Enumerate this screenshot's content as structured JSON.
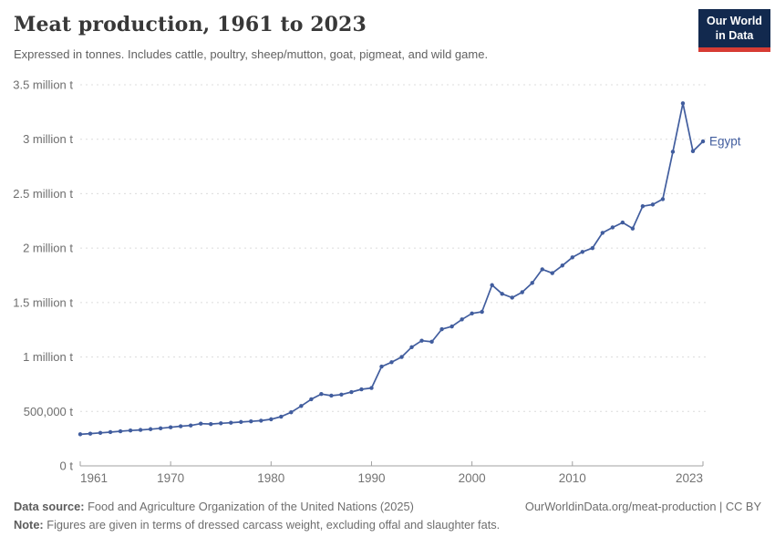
{
  "header": {
    "title": "Meat production, 1961 to 2023",
    "subtitle": "Expressed in tonnes. Includes cattle, poultry, sheep/mutton, goat, pigmeat, and wild game.",
    "logo_line1": "Our World",
    "logo_line2": "in Data"
  },
  "colors": {
    "series_blue": "#415d9e",
    "logo_bg": "#12294e",
    "logo_accent": "#d73c34",
    "gridline": "#dcdcdc",
    "axis": "#a1a1a1",
    "x_tick_label": "#737373",
    "y_tick_label": "#6e6e6e",
    "title_color": "#383838",
    "subtitle_color": "#616161"
  },
  "chart_data": {
    "type": "line",
    "title": "Meat production, 1961 to 2023",
    "unit": "tonnes",
    "grid": "horizontal-dashed",
    "legend_position": "end-of-line-label",
    "xlim": [
      1961,
      2023
    ],
    "ylim": [
      0,
      3500000
    ],
    "x_ticks": [
      1961,
      1970,
      1980,
      1990,
      2000,
      2010,
      2023
    ],
    "y_ticks": [
      {
        "value": 0,
        "label": "0 t"
      },
      {
        "value": 500000,
        "label": "500,000 t"
      },
      {
        "value": 1000000,
        "label": "1 million t"
      },
      {
        "value": 1500000,
        "label": "1.5 million t"
      },
      {
        "value": 2000000,
        "label": "2 million t"
      },
      {
        "value": 2500000,
        "label": "2.5 million t"
      },
      {
        "value": 3000000,
        "label": "3 million t"
      },
      {
        "value": 3500000,
        "label": "3.5 million t"
      }
    ],
    "x": [
      1961,
      1962,
      1963,
      1964,
      1965,
      1966,
      1967,
      1968,
      1969,
      1970,
      1971,
      1972,
      1973,
      1974,
      1975,
      1976,
      1977,
      1978,
      1979,
      1980,
      1981,
      1982,
      1983,
      1984,
      1985,
      1986,
      1987,
      1988,
      1989,
      1990,
      1991,
      1992,
      1993,
      1994,
      1995,
      1996,
      1997,
      1998,
      1999,
      2000,
      2001,
      2002,
      2003,
      2004,
      2005,
      2006,
      2007,
      2008,
      2009,
      2010,
      2011,
      2012,
      2013,
      2014,
      2015,
      2016,
      2017,
      2018,
      2019,
      2020,
      2021,
      2022,
      2023
    ],
    "series": [
      {
        "name": "Egypt",
        "color": "#415d9e",
        "values": [
          290000,
          296000,
          303000,
          310000,
          318000,
          325000,
          330000,
          337000,
          345000,
          354000,
          364000,
          371000,
          388000,
          384000,
          391000,
          396000,
          403000,
          409000,
          415000,
          428000,
          452000,
          492000,
          550000,
          612000,
          660000,
          645000,
          655000,
          678000,
          703000,
          715000,
          912000,
          952000,
          1000000,
          1090000,
          1150000,
          1140000,
          1255000,
          1280000,
          1345000,
          1400000,
          1415000,
          1660000,
          1580000,
          1545000,
          1595000,
          1680000,
          1805000,
          1770000,
          1840000,
          1915000,
          1965000,
          2000000,
          2140000,
          2190000,
          2235000,
          2180000,
          2385000,
          2400000,
          2450000,
          2885000,
          3330000,
          2890000,
          2980000
        ]
      }
    ]
  },
  "footer": {
    "source_label": "Data source:",
    "source": "Food and Agriculture Organization of the United Nations (2025)",
    "link": "OurWorldinData.org/meat-production | CC BY",
    "note_label": "Note:",
    "note": "Figures are given in terms of dressed carcass weight, excluding offal and slaughter fats."
  }
}
